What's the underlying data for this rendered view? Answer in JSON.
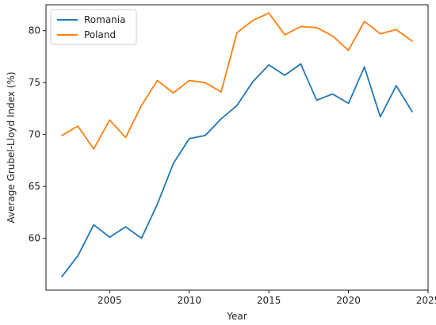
{
  "chart_data": {
    "type": "line",
    "title": "",
    "xlabel": "Year",
    "ylabel": "Average Grubel-Lloyd Index (%)",
    "xlim": [
      2001,
      2025
    ],
    "ylim": [
      55,
      82.5
    ],
    "xticks": [
      2005,
      2010,
      2015,
      2020,
      2025
    ],
    "yticks": [
      60,
      65,
      70,
      75,
      80
    ],
    "grid": false,
    "legend_position": "top-left",
    "x": [
      2002,
      2003,
      2004,
      2005,
      2006,
      2007,
      2008,
      2009,
      2010,
      2011,
      2012,
      2013,
      2014,
      2015,
      2016,
      2017,
      2018,
      2019,
      2020,
      2021,
      2022,
      2023,
      2024
    ],
    "series": [
      {
        "name": "Romania",
        "color": "#1f77b4",
        "values": [
          56.3,
          58.3,
          61.3,
          60.1,
          61.1,
          60.0,
          63.3,
          67.2,
          69.6,
          69.9,
          71.5,
          72.8,
          75.1,
          76.7,
          75.7,
          76.8,
          73.3,
          73.9,
          73.0,
          76.5,
          71.7,
          74.7,
          72.2
        ]
      },
      {
        "name": "Poland",
        "color": "#ff7f0e",
        "values": [
          69.9,
          70.8,
          68.6,
          71.4,
          69.7,
          72.8,
          75.2,
          74.0,
          75.2,
          75.0,
          74.1,
          79.8,
          81.0,
          81.7,
          79.6,
          80.4,
          80.3,
          79.5,
          78.1,
          80.9,
          79.7,
          80.1,
          79.0
        ]
      }
    ]
  }
}
